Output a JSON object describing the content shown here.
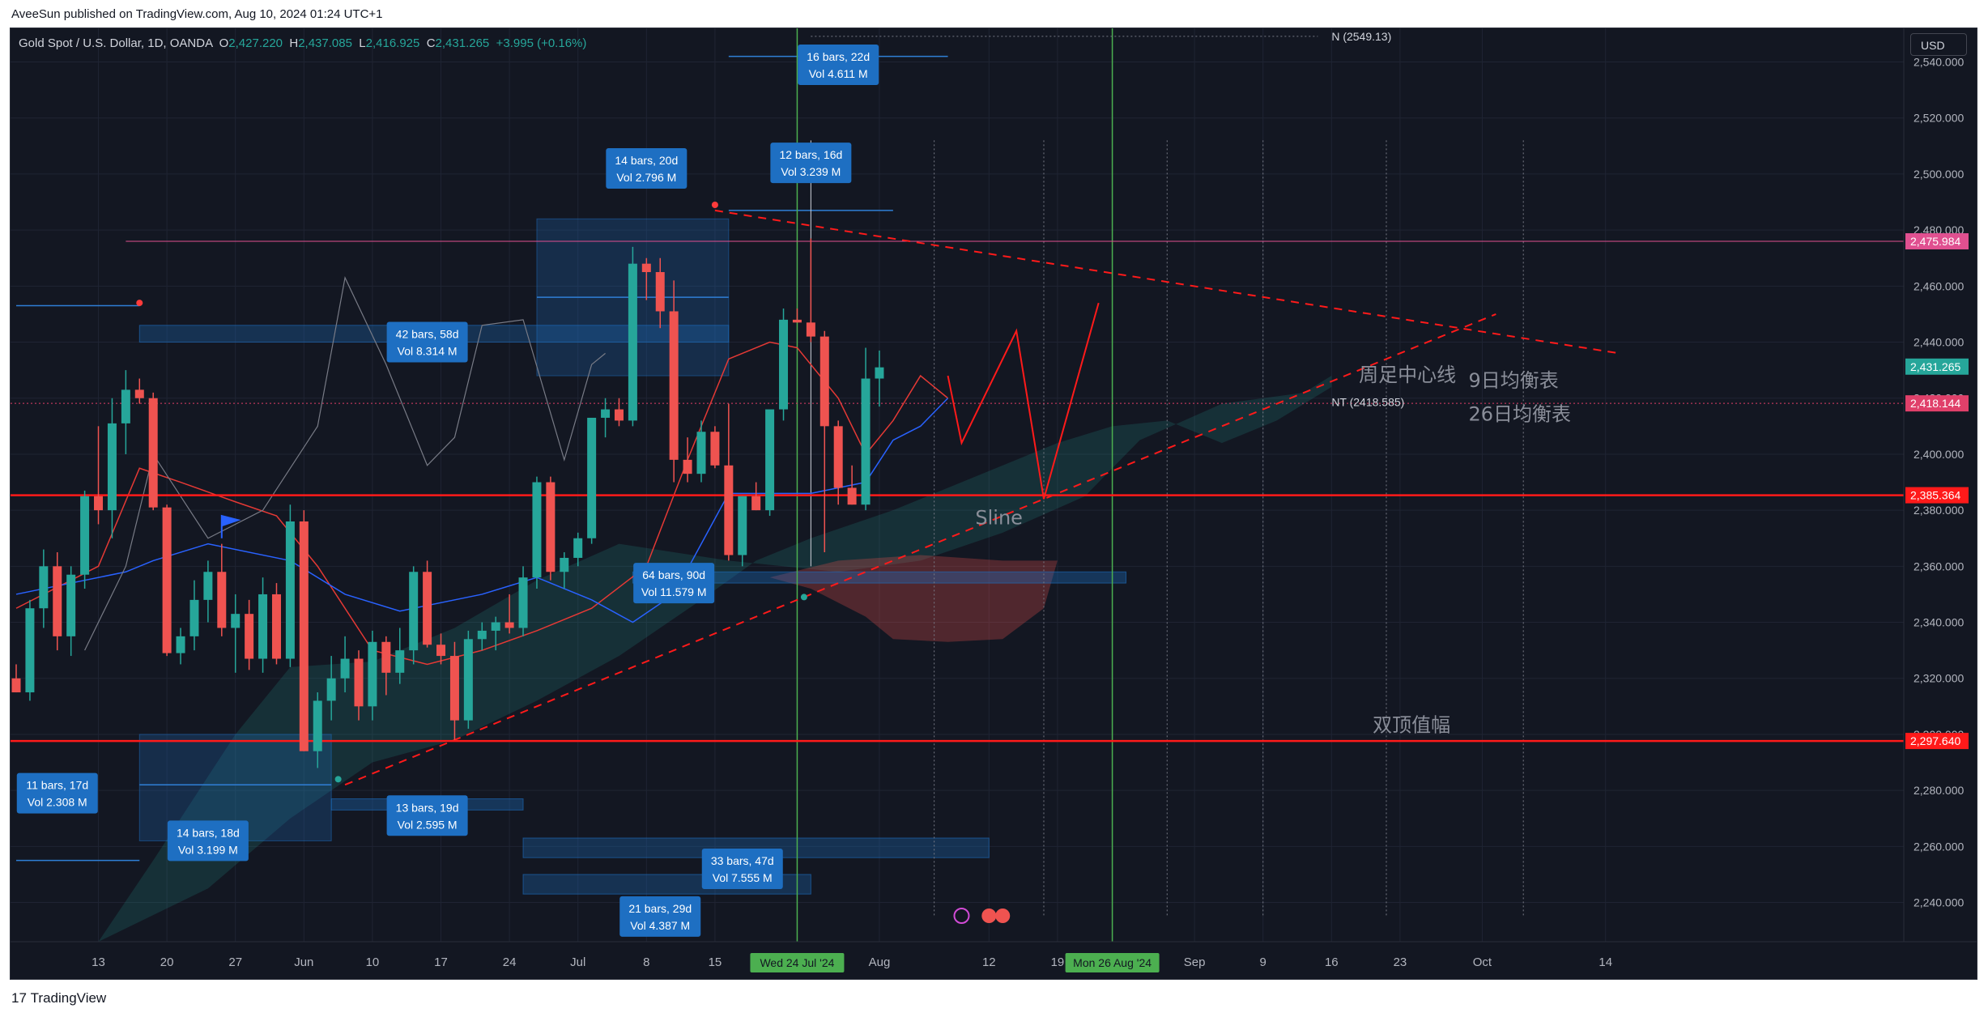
{
  "header": {
    "published": "AveeSun published on TradingView.com, Aug 10, 2024 01:24 UTC+1"
  },
  "symbol": {
    "title": "Gold Spot / U.S. Dollar, 1D, OANDA",
    "o_label": "O",
    "o": "2,427.220",
    "h_label": "H",
    "h": "2,437.085",
    "l_label": "L",
    "l": "2,416.925",
    "c_label": "C",
    "c": "2,431.265",
    "change": "+3.995 (+0.16%)"
  },
  "currency": "USD",
  "footer": {
    "brand_mark": "17",
    "brand": "TradingView"
  },
  "colors": {
    "up": "#26a69a",
    "down": "#ef5350",
    "bg": "#131722",
    "grid": "#1f2433",
    "text": "#b2b5be",
    "red_line": "#ff1a1a",
    "green_line": "#4caf50",
    "label_blue": "#1e6fc2"
  },
  "chart_data": {
    "type": "candlestick",
    "ylim": [
      2226,
      2552
    ],
    "y_ticks": [
      2240,
      2260,
      2280,
      2300,
      2320,
      2340,
      2360,
      2380,
      2400,
      2420,
      2440,
      2460,
      2480,
      2500,
      2520,
      2540
    ],
    "y_tick_labels": [
      "2,240.000",
      "2,260.000",
      "2,280.000",
      "2,300.000",
      "2,320.000",
      "2,340.000",
      "2,360.000",
      "2,380.000",
      "2,400.000",
      "2,420.000",
      "2,440.000",
      "2,460.000",
      "2,480.000",
      "2,500.000",
      "2,520.000",
      "2,540.000"
    ],
    "x_ticks": [
      {
        "label": "13",
        "t": 6
      },
      {
        "label": "20",
        "t": 11
      },
      {
        "label": "27",
        "t": 16
      },
      {
        "label": "Jun",
        "t": 21
      },
      {
        "label": "10",
        "t": 26
      },
      {
        "label": "17",
        "t": 31
      },
      {
        "label": "24",
        "t": 36
      },
      {
        "label": "Jul",
        "t": 41
      },
      {
        "label": "8",
        "t": 46
      },
      {
        "label": "15",
        "t": 51
      },
      {
        "label": "Aug",
        "t": 63
      },
      {
        "label": "12",
        "t": 71
      },
      {
        "label": "19",
        "t": 76
      },
      {
        "label": "Sep",
        "t": 86
      },
      {
        "label": "9",
        "t": 91
      },
      {
        "label": "16",
        "t": 96
      },
      {
        "label": "23",
        "t": 101
      },
      {
        "label": "Oct",
        "t": 107
      },
      {
        "label": "14",
        "t": 116
      }
    ],
    "candles": [
      [
        2320,
        2325,
        2315,
        2315
      ],
      [
        2315,
        2348,
        2312,
        2345
      ],
      [
        2345,
        2366,
        2338,
        2360
      ],
      [
        2360,
        2365,
        2330,
        2335
      ],
      [
        2335,
        2360,
        2328,
        2357
      ],
      [
        2357,
        2387,
        2352,
        2385
      ],
      [
        2385,
        2410,
        2375,
        2380
      ],
      [
        2380,
        2420,
        2370,
        2411
      ],
      [
        2411,
        2430,
        2400,
        2423
      ],
      [
        2423,
        2427,
        2418,
        2420
      ],
      [
        2420,
        2422,
        2380,
        2381
      ],
      [
        2381,
        2382,
        2328,
        2329
      ],
      [
        2329,
        2338,
        2325,
        2335
      ],
      [
        2335,
        2355,
        2330,
        2348
      ],
      [
        2348,
        2362,
        2340,
        2358
      ],
      [
        2358,
        2368,
        2335,
        2338
      ],
      [
        2338,
        2350,
        2322,
        2343
      ],
      [
        2343,
        2348,
        2323,
        2327
      ],
      [
        2327,
        2356,
        2322,
        2350
      ],
      [
        2350,
        2354,
        2325,
        2327
      ],
      [
        2327,
        2382,
        2324,
        2376
      ],
      [
        2376,
        2380,
        2294,
        2294
      ],
      [
        2294,
        2315,
        2288,
        2312
      ],
      [
        2312,
        2328,
        2305,
        2320
      ],
      [
        2320,
        2335,
        2315,
        2327
      ],
      [
        2327,
        2330,
        2305,
        2310
      ],
      [
        2310,
        2337,
        2305,
        2333
      ],
      [
        2333,
        2335,
        2314,
        2322
      ],
      [
        2322,
        2338,
        2318,
        2330
      ],
      [
        2330,
        2360,
        2325,
        2358
      ],
      [
        2358,
        2362,
        2331,
        2332
      ],
      [
        2332,
        2336,
        2325,
        2328
      ],
      [
        2328,
        2333,
        2298,
        2305
      ],
      [
        2305,
        2337,
        2302,
        2334
      ],
      [
        2334,
        2340,
        2330,
        2337
      ],
      [
        2337,
        2342,
        2330,
        2340
      ],
      [
        2340,
        2350,
        2336,
        2338
      ],
      [
        2338,
        2360,
        2335,
        2356
      ],
      [
        2356,
        2392,
        2352,
        2390
      ],
      [
        2390,
        2392,
        2355,
        2358
      ],
      [
        2358,
        2365,
        2352,
        2363
      ],
      [
        2363,
        2372,
        2360,
        2370
      ],
      [
        2370,
        2413,
        2368,
        2413
      ],
      [
        2413,
        2420,
        2406,
        2416
      ],
      [
        2416,
        2420,
        2410,
        2412
      ],
      [
        2412,
        2474,
        2410,
        2468
      ],
      [
        2468,
        2470,
        2455,
        2465
      ],
      [
        2465,
        2470,
        2445,
        2451
      ],
      [
        2451,
        2462,
        2390,
        2398
      ],
      [
        2398,
        2406,
        2390,
        2393
      ],
      [
        2393,
        2412,
        2390,
        2408
      ],
      [
        2408,
        2410,
        2395,
        2396
      ],
      [
        2396,
        2418,
        2362,
        2364
      ],
      [
        2364,
        2385,
        2360,
        2385
      ],
      [
        2385,
        2390,
        2380,
        2380
      ],
      [
        2380,
        2414,
        2378,
        2416
      ],
      [
        2416,
        2452,
        2412,
        2448
      ],
      [
        2448,
        2452,
        2447,
        2447
      ],
      [
        2447,
        2477,
        2440,
        2442
      ],
      [
        2442,
        2444,
        2365,
        2410
      ],
      [
        2410,
        2412,
        2382,
        2388
      ],
      [
        2388,
        2396,
        2382,
        2382
      ],
      [
        2382,
        2438,
        2380,
        2427
      ],
      [
        2427,
        2437,
        2417,
        2431
      ]
    ],
    "horizontal_levels": [
      {
        "value": 2475.984,
        "label": "2,475.984",
        "color": "#e05090"
      },
      {
        "value": 2418.144,
        "label": "2,418.144",
        "color": "#e0406a"
      },
      {
        "value": 2385.364,
        "label": "2,385.364",
        "color": "#ff1a1a"
      },
      {
        "value": 2297.64,
        "label": "2,297.640",
        "color": "#ff1a1a"
      }
    ],
    "current_price": {
      "value": 2431.265,
      "label": "2,431.265"
    },
    "levels_text": [
      {
        "text": "N (2549.13)",
        "value": 2549.13
      },
      {
        "text": "NT (2418.585)",
        "value": 2418.585
      }
    ],
    "annotations": [
      {
        "text": "周足中心线",
        "value": 2426,
        "t": 98
      },
      {
        "text": "9日均衡表",
        "value": 2424,
        "t": 106
      },
      {
        "text": "26日均衡表",
        "value": 2412,
        "t": 106
      },
      {
        "text": "双顶值幅",
        "value": 2301,
        "t": 99
      },
      {
        "text": "Sline",
        "value": 2375,
        "t": 70
      }
    ],
    "measure_boxes": [
      {
        "line1": "11 bars, 17d",
        "line2": "Vol 2.308 M",
        "t": 3,
        "value": 2279
      },
      {
        "line1": "14 bars, 18d",
        "line2": "Vol 3.199 M",
        "t": 14,
        "value": 2262
      },
      {
        "line1": "13 bars, 19d",
        "line2": "Vol 2.595 M",
        "t": 30,
        "value": 2271
      },
      {
        "line1": "21 bars, 29d",
        "line2": "Vol 4.387 M",
        "t": 47,
        "value": 2235
      },
      {
        "line1": "33 bars, 47d",
        "line2": "Vol 7.555 M",
        "t": 53,
        "value": 2252
      },
      {
        "line1": "64 bars, 90d",
        "line2": "Vol 11.579 M",
        "t": 48,
        "value": 2354
      },
      {
        "line1": "42 bars, 58d",
        "line2": "Vol 8.314 M",
        "t": 30,
        "value": 2440
      },
      {
        "line1": "14 bars, 20d",
        "line2": "Vol 2.796 M",
        "t": 46,
        "value": 2502
      },
      {
        "line1": "12 bars, 16d",
        "line2": "Vol 3.239 M",
        "t": 58,
        "value": 2504
      },
      {
        "line1": "16 bars, 22d",
        "line2": "Vol 4.611 M",
        "t": 60,
        "value": 2539
      }
    ],
    "vertical_markers": [
      {
        "label": "Wed 24 Jul '24",
        "t": 57
      },
      {
        "label": "Mon 26 Aug '24",
        "t": 80
      }
    ]
  }
}
